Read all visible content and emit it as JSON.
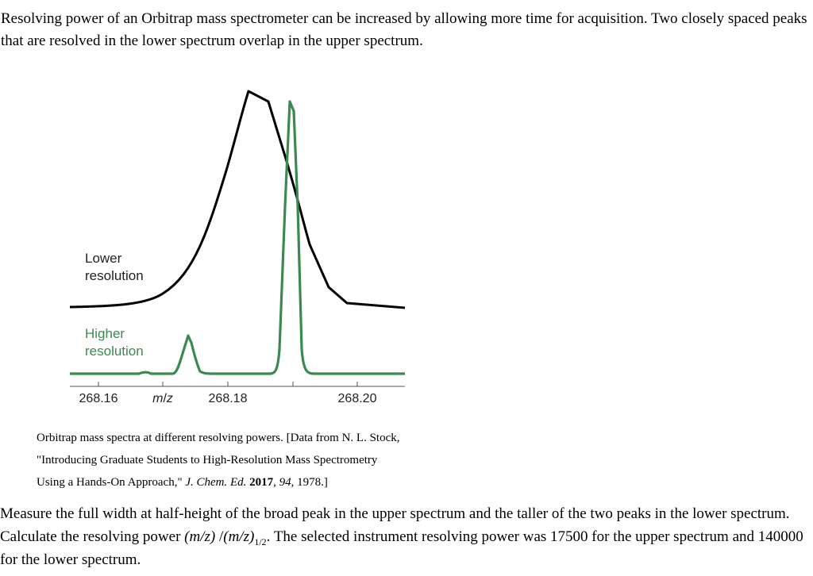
{
  "intro": "Resolving power of an Orbitrap mass spectrometer can be increased by allowing more time for acquisition. Two closely spaced peaks that are resolved in the lower spectrum overlap in the upper spectrum.",
  "figure": {
    "labels": {
      "lower_line1": "Lower",
      "lower_line2": "resolution",
      "higher_line1": "Higher",
      "higher_line2": "resolution"
    },
    "axis": {
      "ticks": [
        "268.16",
        "268.18",
        "268.20"
      ],
      "label_m": "m",
      "label_slash": "/",
      "label_z": "z"
    },
    "colors": {
      "lower": "#000000",
      "higher": "#3a8a4f"
    }
  },
  "caption": {
    "line1": "Orbitrap mass spectra at different resolving powers. [Data from N. L. Stock,",
    "line2": "\"Introducing Graduate Students to High-Resolution Mass Spectrometry",
    "line3a": "Using a Hands-On Approach,\" ",
    "journal": "J. Chem. Ed.",
    "year": "2017",
    "volume": "94",
    "pages": ", 1978.]"
  },
  "question": {
    "p1": "Measure the full width at half-height of the broad peak in the upper spectrum and the taller of the two peaks in the lower spectrum. Calculate the resolving power ",
    "formula_num": "(m/z)",
    "formula_slash": " /",
    "formula_den": "(m/z)",
    "formula_sub": "1/2",
    "p2": ". The selected instrument resolving power was 17500 for the upper spectrum and 140000 for the lower spectrum."
  }
}
